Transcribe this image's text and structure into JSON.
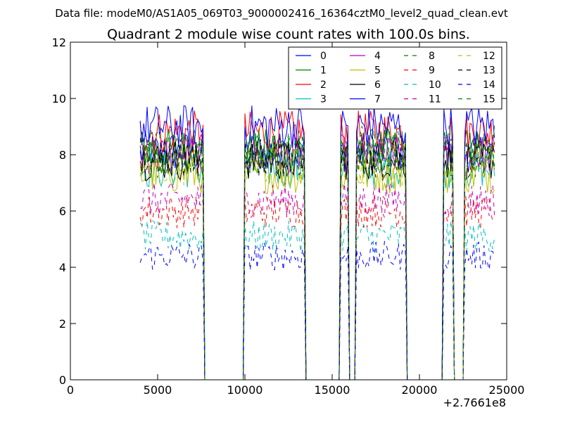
{
  "chart_data": {
    "type": "line",
    "suptitle": "Data file: modeM0/AS1A05_069T03_9000002416_16364cztM0_level2_quad_clean.evt",
    "title": "Quadrant 2 module wise count rates with 100.0s bins.",
    "xlabel": "",
    "ylabel": "",
    "x_offset_label": "+2.7661e8",
    "xlim": [
      0,
      25000
    ],
    "ylim": [
      0,
      12
    ],
    "x_ticks": [
      0,
      5000,
      10000,
      15000,
      20000,
      25000
    ],
    "y_ticks": [
      0,
      2,
      4,
      6,
      8,
      10,
      12
    ],
    "grid": false,
    "legend_position": "top-right",
    "legend_columns": 4,
    "segments": [
      {
        "start": 4000,
        "end": 7600
      },
      {
        "start": 10000,
        "end": 13400
      },
      {
        "start": 15500,
        "end": 15900
      },
      {
        "start": 16400,
        "end": 19200
      },
      {
        "start": 21400,
        "end": 21900
      },
      {
        "start": 22600,
        "end": 24300
      }
    ],
    "series": [
      {
        "name": "0",
        "color": "#0000ff",
        "dash": "solid",
        "level": 8.1
      },
      {
        "name": "1",
        "color": "#008000",
        "dash": "solid",
        "level": 8.2
      },
      {
        "name": "2",
        "color": "#ff0000",
        "dash": "solid",
        "level": 8.8
      },
      {
        "name": "3",
        "color": "#00bfbf",
        "dash": "solid",
        "level": 7.5
      },
      {
        "name": "4",
        "color": "#bf00bf",
        "dash": "solid",
        "level": 8.0
      },
      {
        "name": "5",
        "color": "#bfbf00",
        "dash": "solid",
        "level": 7.3
      },
      {
        "name": "6",
        "color": "#000000",
        "dash": "solid",
        "level": 7.8
      },
      {
        "name": "7",
        "color": "#0000ff",
        "dash": "solid",
        "level": 9.0
      },
      {
        "name": "8",
        "color": "#008000",
        "dash": "dashed",
        "level": 7.9
      },
      {
        "name": "9",
        "color": "#ff0000",
        "dash": "dashed",
        "level": 6.0
      },
      {
        "name": "10",
        "color": "#00bfbf",
        "dash": "dashed",
        "level": 5.1
      },
      {
        "name": "11",
        "color": "#bf00bf",
        "dash": "dashed",
        "level": 6.4
      },
      {
        "name": "12",
        "color": "#bfbf00",
        "dash": "dashed",
        "level": 7.6
      },
      {
        "name": "13",
        "color": "#000000",
        "dash": "dashed",
        "level": 7.9
      },
      {
        "name": "14",
        "color": "#0000ff",
        "dash": "dashed",
        "level": 4.4
      },
      {
        "name": "15",
        "color": "#008000",
        "dash": "dashed",
        "level": 8.3
      }
    ]
  }
}
